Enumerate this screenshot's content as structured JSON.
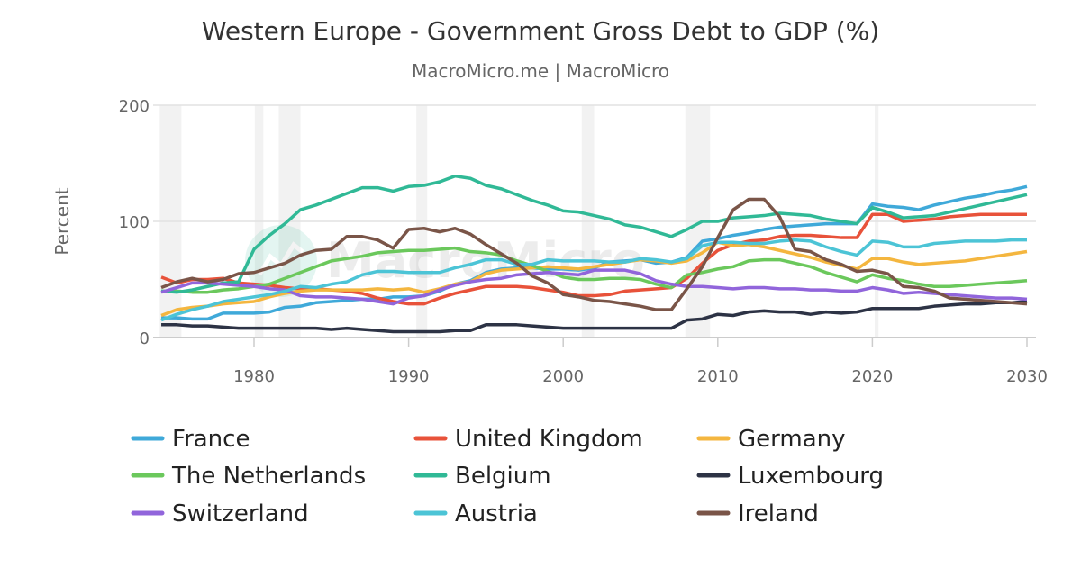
{
  "chart_data": {
    "type": "line",
    "title": "Western Europe - Government Gross Debt to GDP (%)",
    "subtitle": "MacroMicro.me | MacroMicro",
    "watermark": "MacroMicro",
    "xlabel": "",
    "ylabel": "Percent",
    "xlim": [
      1974,
      2030
    ],
    "ylim": [
      0,
      200
    ],
    "yticks": [
      0,
      100,
      200
    ],
    "xticks": [
      1980,
      1990,
      2000,
      2010,
      2020,
      2030
    ],
    "grid": true,
    "legend_position": "bottom",
    "recession_bands": [
      [
        1973.9,
        1975.3
      ],
      [
        1980.05,
        1980.6
      ],
      [
        1981.6,
        1983.0
      ],
      [
        1990.5,
        1991.2
      ],
      [
        2001.2,
        2002.0
      ],
      [
        2007.9,
        2009.5
      ],
      [
        2020.15,
        2020.4
      ]
    ],
    "x": [
      1974,
      1975,
      1976,
      1977,
      1978,
      1979,
      1980,
      1981,
      1982,
      1983,
      1984,
      1985,
      1986,
      1987,
      1988,
      1989,
      1990,
      1991,
      1992,
      1993,
      1994,
      1995,
      1996,
      1997,
      1998,
      1999,
      2000,
      2001,
      2002,
      2003,
      2004,
      2005,
      2006,
      2007,
      2008,
      2009,
      2010,
      2011,
      2012,
      2013,
      2014,
      2015,
      2016,
      2017,
      2018,
      2019,
      2020,
      2021,
      2022,
      2023,
      2024,
      2025,
      2026,
      2027,
      2028,
      2029,
      2030
    ],
    "series": [
      {
        "name": "France",
        "color": "#3fa9d9",
        "values": [
          17,
          17,
          16,
          16,
          21,
          21,
          21,
          22,
          26,
          27,
          30,
          31,
          32,
          33,
          33,
          35,
          35,
          36,
          40,
          46,
          49,
          56,
          59,
          60,
          60,
          59,
          59,
          58,
          60,
          65,
          66,
          67,
          64,
          65,
          69,
          83,
          85,
          88,
          90,
          93,
          95,
          96,
          97,
          98,
          98,
          98,
          115,
          113,
          112,
          110,
          114,
          117,
          120,
          122,
          125,
          127,
          130
        ]
      },
      {
        "name": "United Kingdom",
        "color": "#e8523a",
        "values": [
          52,
          47,
          50,
          50,
          51,
          47,
          46,
          45,
          43,
          42,
          42,
          41,
          40,
          38,
          34,
          31,
          29,
          29,
          34,
          38,
          41,
          44,
          44,
          44,
          43,
          41,
          39,
          36,
          36,
          37,
          40,
          41,
          42,
          43,
          51,
          64,
          75,
          80,
          83,
          84,
          87,
          88,
          88,
          87,
          86,
          86,
          106,
          106,
          100,
          101,
          102,
          104,
          105,
          106,
          106,
          106,
          106
        ]
      },
      {
        "name": "Germany",
        "color": "#f4b63f",
        "values": [
          19,
          24,
          26,
          27,
          29,
          30,
          31,
          35,
          38,
          40,
          41,
          41,
          41,
          41,
          42,
          41,
          42,
          39,
          42,
          46,
          48,
          55,
          58,
          59,
          60,
          61,
          60,
          59,
          61,
          63,
          65,
          67,
          66,
          64,
          66,
          73,
          82,
          79,
          80,
          78,
          75,
          72,
          69,
          65,
          62,
          59,
          68,
          68,
          65,
          63,
          64,
          65,
          66,
          68,
          70,
          72,
          74
        ]
      },
      {
        "name": "The Netherlands",
        "color": "#6bc85c",
        "values": [
          40,
          40,
          39,
          39,
          41,
          42,
          44,
          46,
          51,
          56,
          61,
          66,
          68,
          70,
          73,
          74,
          75,
          75,
          76,
          77,
          74,
          73,
          71,
          66,
          62,
          57,
          52,
          50,
          50,
          51,
          51,
          50,
          46,
          43,
          54,
          56,
          59,
          61,
          66,
          67,
          67,
          64,
          61,
          56,
          52,
          48,
          54,
          51,
          49,
          46,
          44,
          44,
          45,
          46,
          47,
          48,
          49
        ]
      },
      {
        "name": "Belgium",
        "color": "#30b996",
        "values": [
          40,
          39,
          41,
          44,
          47,
          48,
          76,
          88,
          98,
          110,
          114,
          119,
          124,
          129,
          129,
          126,
          130,
          131,
          134,
          139,
          137,
          131,
          128,
          123,
          118,
          114,
          109,
          108,
          105,
          102,
          97,
          95,
          91,
          87,
          93,
          100,
          100,
          103,
          104,
          105,
          107,
          106,
          105,
          102,
          100,
          98,
          112,
          108,
          103,
          104,
          105,
          108,
          111,
          114,
          117,
          120,
          123
        ]
      },
      {
        "name": "Luxembourg",
        "color": "#2d3345",
        "values": [
          11,
          11,
          10,
          10,
          9,
          8,
          8,
          8,
          8,
          8,
          8,
          7,
          8,
          7,
          6,
          5,
          5,
          5,
          5,
          6,
          6,
          11,
          11,
          11,
          10,
          9,
          8,
          8,
          8,
          8,
          8,
          8,
          8,
          8,
          15,
          16,
          20,
          19,
          22,
          23,
          22,
          22,
          20,
          22,
          21,
          22,
          25,
          25,
          25,
          25,
          27,
          28,
          29,
          29,
          30,
          30,
          31
        ]
      },
      {
        "name": "Switzerland",
        "color": "#9165db",
        "values": [
          39,
          43,
          47,
          47,
          46,
          45,
          44,
          42,
          41,
          36,
          35,
          35,
          34,
          33,
          31,
          29,
          34,
          36,
          41,
          45,
          48,
          50,
          51,
          54,
          55,
          56,
          55,
          54,
          58,
          58,
          58,
          55,
          49,
          46,
          44,
          44,
          43,
          42,
          43,
          43,
          42,
          42,
          41,
          41,
          40,
          40,
          43,
          41,
          38,
          39,
          38,
          37,
          36,
          35,
          34,
          34,
          33
        ]
      },
      {
        "name": "Austria",
        "color": "#4cc4d6",
        "values": [
          15,
          20,
          24,
          27,
          31,
          33,
          35,
          37,
          40,
          44,
          43,
          46,
          48,
          54,
          57,
          57,
          56,
          56,
          56,
          60,
          63,
          67,
          67,
          63,
          63,
          67,
          66,
          66,
          66,
          65,
          65,
          68,
          67,
          65,
          68,
          79,
          82,
          82,
          81,
          81,
          83,
          84,
          83,
          78,
          74,
          71,
          83,
          82,
          78,
          78,
          81,
          82,
          83,
          83,
          83,
          84,
          84
        ]
      },
      {
        "name": "Ireland",
        "color": "#7a5548",
        "values": [
          43,
          48,
          51,
          48,
          50,
          55,
          56,
          60,
          64,
          71,
          75,
          76,
          87,
          87,
          84,
          77,
          93,
          94,
          91,
          94,
          89,
          80,
          72,
          64,
          53,
          47,
          37,
          35,
          32,
          31,
          29,
          27,
          24,
          24,
          42,
          61,
          86,
          110,
          119,
          119,
          104,
          76,
          74,
          67,
          63,
          57,
          58,
          55,
          44,
          43,
          40,
          34,
          33,
          32,
          31,
          30,
          29
        ]
      }
    ]
  }
}
